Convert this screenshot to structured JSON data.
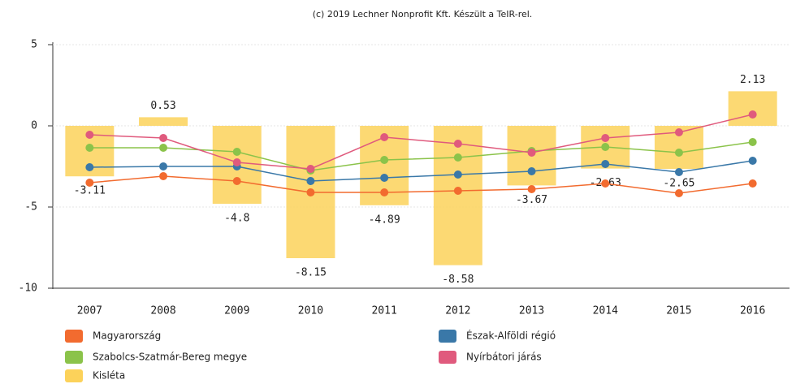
{
  "chart_data": {
    "type": "bar",
    "title": "(c) 2019 Lechner Nonprofit Kft. Készült a TeIR-rel.",
    "categories": [
      "2007",
      "2008",
      "2009",
      "2010",
      "2011",
      "2012",
      "2013",
      "2014",
      "2015",
      "2016"
    ],
    "ylim": [
      -10,
      5
    ],
    "yticks": [
      -10,
      -5,
      0,
      5
    ],
    "series": [
      {
        "name": "Magyarország",
        "type": "line",
        "color": "#f26b2f",
        "values": [
          -3.5,
          -3.1,
          -3.4,
          -4.1,
          -4.1,
          -4.0,
          -3.9,
          -3.55,
          -4.15,
          -3.55
        ]
      },
      {
        "name": "Észak-Alföldi régió",
        "type": "line",
        "color": "#3a78a8",
        "values": [
          -2.55,
          -2.5,
          -2.5,
          -3.4,
          -3.2,
          -3.0,
          -2.8,
          -2.35,
          -2.85,
          -2.15
        ]
      },
      {
        "name": "Szabolcs-Szatmár-Bereg megye",
        "type": "line",
        "color": "#8bc34a",
        "values": [
          -1.35,
          -1.35,
          -1.6,
          -2.75,
          -2.1,
          -1.95,
          -1.55,
          -1.3,
          -1.65,
          -1.0
        ]
      },
      {
        "name": "Nyírbátori járás",
        "type": "line",
        "color": "#e05a7d",
        "values": [
          -0.55,
          -0.75,
          -2.25,
          -2.65,
          -0.7,
          -1.1,
          -1.65,
          -0.75,
          -0.4,
          0.7
        ]
      },
      {
        "name": "Kisléta",
        "type": "bar",
        "color": "#fcd25a",
        "values": [
          -3.11,
          0.53,
          -4.8,
          -8.15,
          -4.89,
          -8.58,
          -3.67,
          -2.63,
          -2.65,
          2.13
        ]
      }
    ]
  }
}
